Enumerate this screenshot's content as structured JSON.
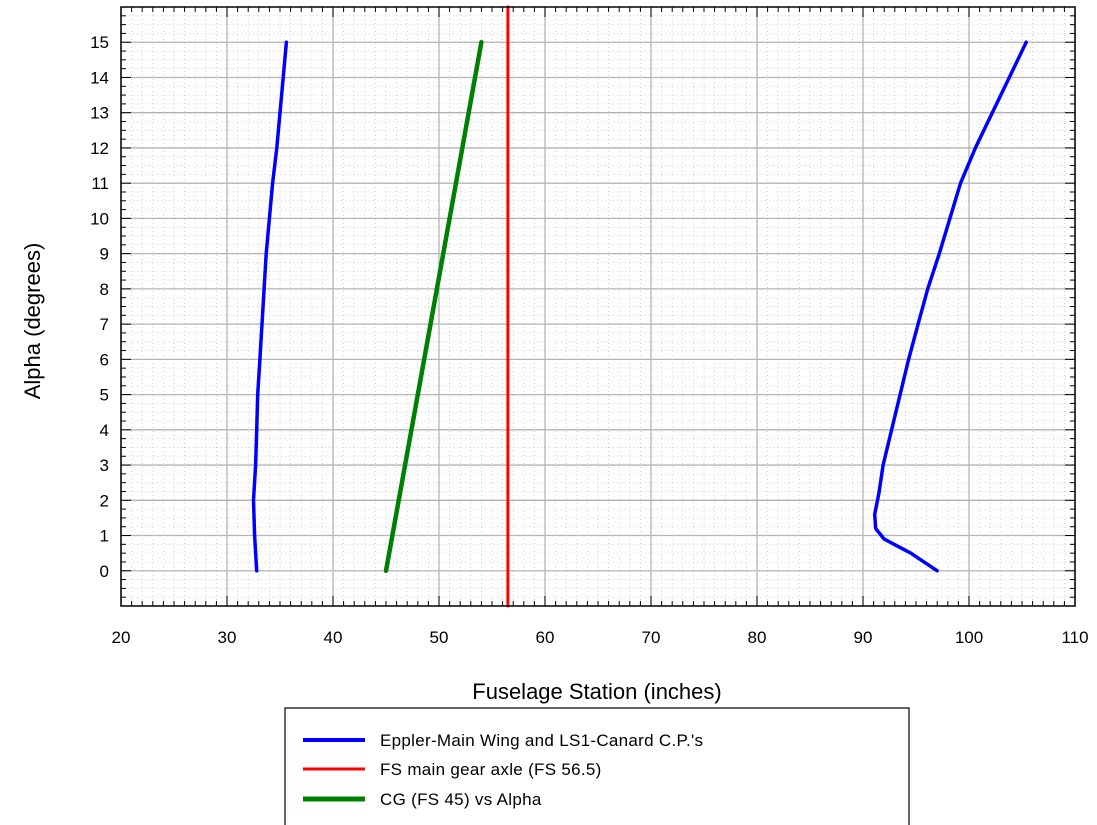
{
  "chart_data": {
    "type": "line",
    "title": "",
    "xlabel": "Fuselage Station (inches)",
    "ylabel": "Alpha (degrees)",
    "xlim": [
      20,
      110
    ],
    "ylim": [
      -1,
      16
    ],
    "x_ticks": [
      20,
      30,
      40,
      50,
      60,
      70,
      80,
      90,
      100,
      110
    ],
    "y_ticks": [
      0,
      1,
      2,
      3,
      4,
      5,
      6,
      7,
      8,
      9,
      10,
      11,
      12,
      13,
      14,
      15
    ],
    "grid": true,
    "legend_position": "bottom-center",
    "series": [
      {
        "name": "Eppler-Main Wing and LS1-Canard C.P.'s",
        "color": "#0000ff",
        "segments": [
          [
            [
              32.8,
              0
            ],
            [
              32.6,
              1
            ],
            [
              32.5,
              2
            ],
            [
              32.7,
              3
            ],
            [
              32.8,
              4
            ],
            [
              32.9,
              5
            ],
            [
              33.1,
              6
            ],
            [
              33.3,
              7
            ],
            [
              33.5,
              8
            ],
            [
              33.7,
              9
            ],
            [
              34.0,
              10
            ],
            [
              34.3,
              11
            ],
            [
              34.7,
              12
            ],
            [
              35.0,
              13
            ],
            [
              35.3,
              14
            ],
            [
              35.6,
              15
            ]
          ],
          [
            [
              97.0,
              0
            ],
            [
              94.5,
              0.5
            ],
            [
              92.0,
              0.9
            ],
            [
              91.2,
              1.2
            ],
            [
              91.1,
              1.6
            ],
            [
              91.5,
              2.2
            ],
            [
              91.9,
              3
            ],
            [
              92.7,
              4
            ],
            [
              93.5,
              5
            ],
            [
              94.3,
              6
            ],
            [
              95.2,
              7
            ],
            [
              96.1,
              8
            ],
            [
              97.2,
              9
            ],
            [
              98.2,
              10
            ],
            [
              99.2,
              11
            ],
            [
              100.6,
              12
            ],
            [
              102.2,
              13
            ],
            [
              103.8,
              14
            ],
            [
              105.4,
              15
            ]
          ]
        ]
      },
      {
        "name": "FS main gear axle (FS 56.5)",
        "color": "#ff0000",
        "segments": [
          [
            [
              56.5,
              -1
            ],
            [
              56.5,
              16
            ]
          ]
        ]
      },
      {
        "name": "CG (FS 45) vs Alpha",
        "color": "#008000",
        "segments": [
          [
            [
              45.0,
              0
            ],
            [
              54.0,
              15
            ]
          ]
        ]
      }
    ]
  }
}
